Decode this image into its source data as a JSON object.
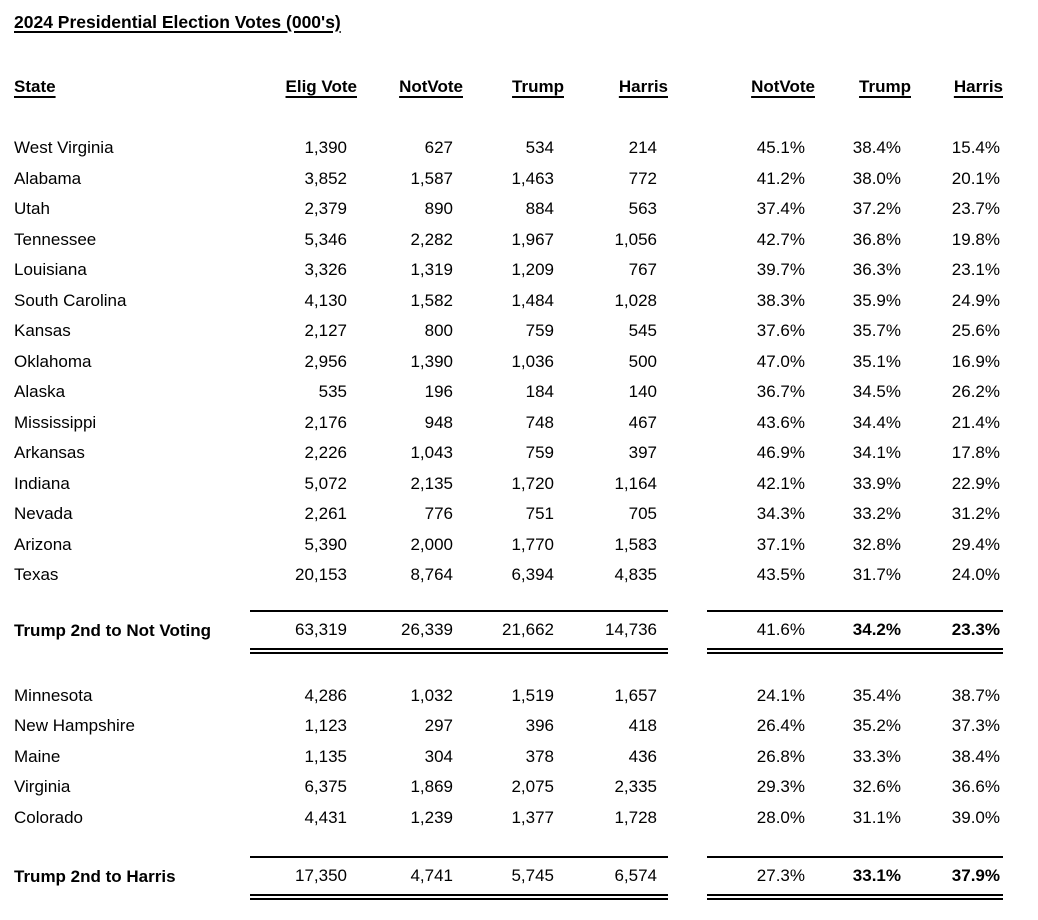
{
  "chart_data": {
    "type": "table",
    "title": "2024 Presidential Election Votes (000's)",
    "columns": [
      "State",
      "Elig Vote",
      "NotVote",
      "Trump",
      "Harris",
      "NotVote",
      "Trump",
      "Harris"
    ],
    "sections": [
      {
        "rows": [
          [
            "West Virginia",
            "1,390",
            "627",
            "534",
            "214",
            "45.1%",
            "38.4%",
            "15.4%"
          ],
          [
            "Alabama",
            "3,852",
            "1,587",
            "1,463",
            "772",
            "41.2%",
            "38.0%",
            "20.1%"
          ],
          [
            "Utah",
            "2,379",
            "890",
            "884",
            "563",
            "37.4%",
            "37.2%",
            "23.7%"
          ],
          [
            "Tennessee",
            "5,346",
            "2,282",
            "1,967",
            "1,056",
            "42.7%",
            "36.8%",
            "19.8%"
          ],
          [
            "Louisiana",
            "3,326",
            "1,319",
            "1,209",
            "767",
            "39.7%",
            "36.3%",
            "23.1%"
          ],
          [
            "South Carolina",
            "4,130",
            "1,582",
            "1,484",
            "1,028",
            "38.3%",
            "35.9%",
            "24.9%"
          ],
          [
            "Kansas",
            "2,127",
            "800",
            "759",
            "545",
            "37.6%",
            "35.7%",
            "25.6%"
          ],
          [
            "Oklahoma",
            "2,956",
            "1,390",
            "1,036",
            "500",
            "47.0%",
            "35.1%",
            "16.9%"
          ],
          [
            "Alaska",
            "535",
            "196",
            "184",
            "140",
            "36.7%",
            "34.5%",
            "26.2%"
          ],
          [
            "Mississippi",
            "2,176",
            "948",
            "748",
            "467",
            "43.6%",
            "34.4%",
            "21.4%"
          ],
          [
            "Arkansas",
            "2,226",
            "1,043",
            "759",
            "397",
            "46.9%",
            "34.1%",
            "17.8%"
          ],
          [
            "Indiana",
            "5,072",
            "2,135",
            "1,720",
            "1,164",
            "42.1%",
            "33.9%",
            "22.9%"
          ],
          [
            "Nevada",
            "2,261",
            "776",
            "751",
            "705",
            "34.3%",
            "33.2%",
            "31.2%"
          ],
          [
            "Arizona",
            "5,390",
            "2,000",
            "1,770",
            "1,583",
            "37.1%",
            "32.8%",
            "29.4%"
          ],
          [
            "Texas",
            "20,153",
            "8,764",
            "6,394",
            "4,835",
            "43.5%",
            "31.7%",
            "24.0%"
          ]
        ],
        "total": {
          "label": "Trump 2nd to Not Voting",
          "values": [
            "63,319",
            "26,339",
            "21,662",
            "14,736",
            "41.6%",
            "34.2%",
            "23.3%"
          ]
        }
      },
      {
        "rows": [
          [
            "Minnesota",
            "4,286",
            "1,032",
            "1,519",
            "1,657",
            "24.1%",
            "35.4%",
            "38.7%"
          ],
          [
            "New Hampshire",
            "1,123",
            "297",
            "396",
            "418",
            "26.4%",
            "35.2%",
            "37.3%"
          ],
          [
            "Maine",
            "1,135",
            "304",
            "378",
            "436",
            "26.8%",
            "33.3%",
            "38.4%"
          ],
          [
            "Virginia",
            "6,375",
            "1,869",
            "2,075",
            "2,335",
            "29.3%",
            "32.6%",
            "36.6%"
          ],
          [
            "Colorado",
            "4,431",
            "1,239",
            "1,377",
            "1,728",
            "28.0%",
            "31.1%",
            "39.0%"
          ]
        ],
        "total": {
          "label": "Trump 2nd to Harris",
          "values": [
            "17,350",
            "4,741",
            "5,745",
            "6,574",
            "27.3%",
            "33.1%",
            "37.9%"
          ]
        }
      }
    ],
    "colors": {
      "text": "#000000",
      "background": "#ffffff",
      "rule": "#000000"
    }
  }
}
